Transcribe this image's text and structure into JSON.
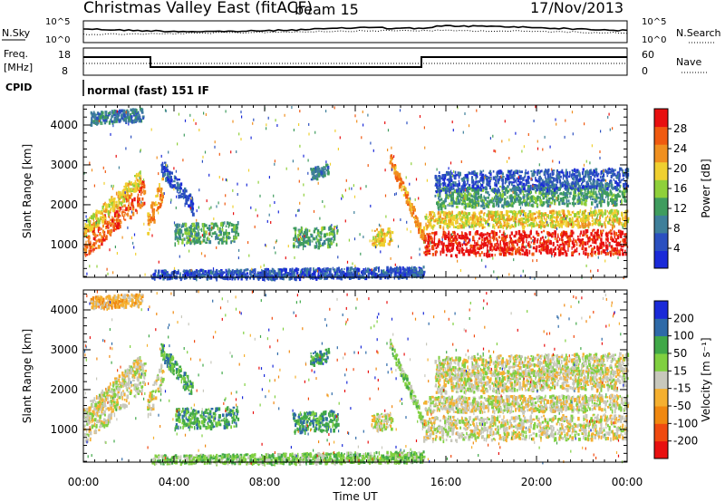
{
  "header": {
    "title": "Christmas Valley East (fitACF)",
    "beam_label": "beam 15",
    "date": "17/Nov/2013"
  },
  "top_panels": {
    "nsky": {
      "left_label": "N.Sky",
      "right_label": "N.Search",
      "left_ticks": [
        "10^5",
        "10^0"
      ],
      "right_ticks": [
        "10^5",
        "10^0"
      ]
    },
    "freq": {
      "left_label_1": "Freq.",
      "left_label_2": "[MHz]",
      "right_label": "Nave",
      "left_ticks": [
        "18",
        "8"
      ],
      "right_ticks": [
        "60",
        "0"
      ]
    },
    "cpid": {
      "label": "CPID",
      "text": "normal (fast) 151 IF"
    }
  },
  "colors": {
    "power": [
      "#1a2ad8",
      "#2b50c0",
      "#3e7f9a",
      "#3f9c5e",
      "#8fd03a",
      "#f0d030",
      "#f09020",
      "#f05a10",
      "#e81010"
    ],
    "velocity": [
      "#e81010",
      "#f04a10",
      "#f08810",
      "#f5b030",
      "#c8c8bc",
      "#80d040",
      "#40a848",
      "#2e6aa8",
      "#1a2ad8"
    ]
  },
  "chart_data": [
    {
      "type": "heatmap",
      "name": "power",
      "ylabel": "Slant Range [km]",
      "ylim": [
        180,
        4500
      ],
      "yticks": [
        1000,
        2000,
        3000,
        4000
      ],
      "xlim": [
        0,
        24
      ],
      "xticks": [
        0,
        4,
        8,
        12,
        16,
        20,
        24
      ],
      "xtick_labels": [
        "00:00",
        "04:00",
        "08:00",
        "12:00",
        "16:00",
        "20:00",
        "00:00"
      ],
      "colorbar": {
        "label": "Power [dB]",
        "ticks": [
          4,
          8,
          12,
          16,
          20,
          24,
          28
        ],
        "range": [
          0,
          32
        ]
      }
    },
    {
      "type": "heatmap",
      "name": "velocity",
      "ylabel": "Slant Range [km]",
      "xlabel": "Time UT",
      "ylim": [
        180,
        4500
      ],
      "yticks": [
        1000,
        2000,
        3000,
        4000
      ],
      "xlim": [
        0,
        24
      ],
      "xticks": [
        0,
        4,
        8,
        12,
        16,
        20,
        24
      ],
      "xtick_labels": [
        "00:00",
        "04:00",
        "08:00",
        "12:00",
        "16:00",
        "20:00",
        "00:00"
      ],
      "colorbar": {
        "label": "Velocity [m s⁻¹]",
        "ticks": [
          "200",
          "100",
          "50",
          "15",
          "-15",
          "-50",
          "-100",
          "-200"
        ]
      }
    }
  ]
}
